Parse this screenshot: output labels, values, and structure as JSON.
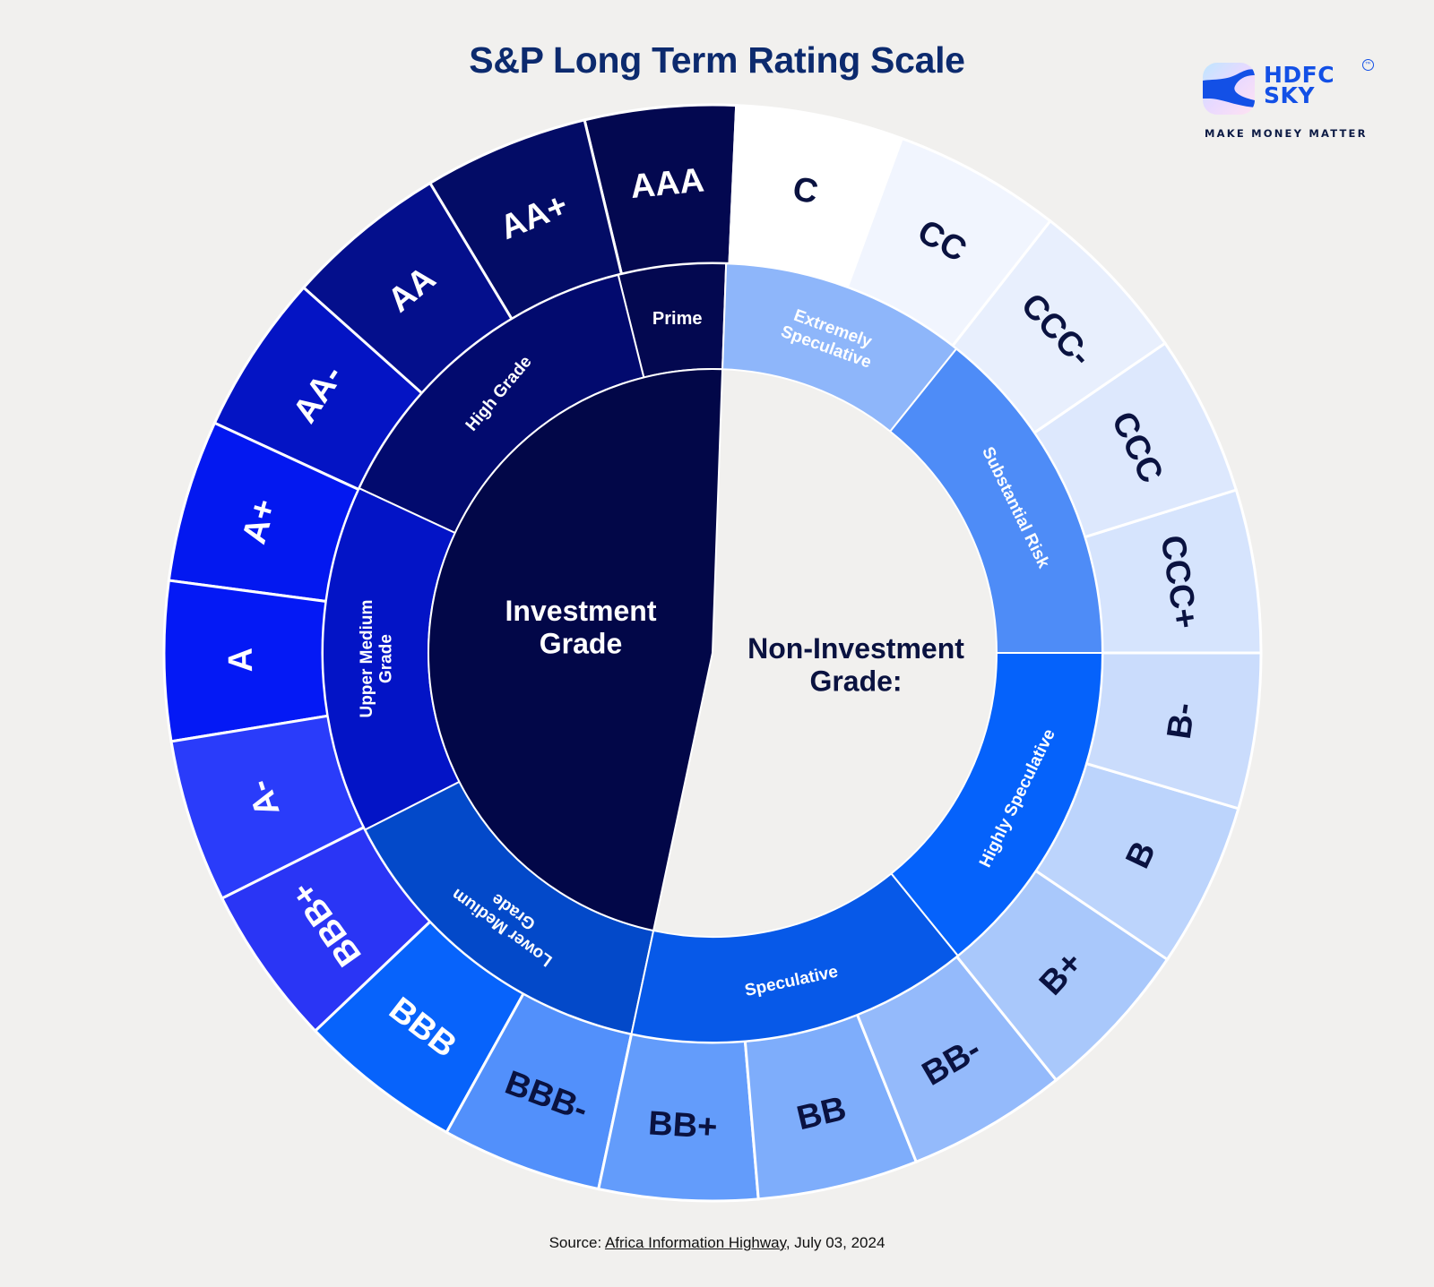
{
  "title": "S&P Long Term Rating Scale",
  "logo": {
    "brand_line1": "HDFC",
    "brand_line2": "SKY",
    "tm": "TM",
    "tagline": "MAKE MONEY MATTER",
    "accent": "#1350e6"
  },
  "source": {
    "prefix": "Source: ",
    "link_text": "Africa Information Highway",
    "suffix": ", July 03, 2024"
  },
  "chart_data": {
    "type": "sunburst",
    "title": "S&P Long Term Rating Scale",
    "levels": [
      "grade",
      "category",
      "rating"
    ],
    "center": [
      {
        "label": "Investment Grade",
        "color": "#020748",
        "text_color": "#ffffff"
      },
      {
        "label": "Non-Investment Grade:",
        "color": "#f1f0ee",
        "text_color": "#0a1240"
      }
    ],
    "categories": [
      {
        "label": "Prime",
        "grade": "Investment Grade",
        "color": "#030850",
        "ratings": [
          "AAA"
        ]
      },
      {
        "label": "High Grade",
        "grade": "Investment Grade",
        "color": "#020a6e",
        "ratings": [
          "AA+",
          "AA",
          "AA-"
        ]
      },
      {
        "label": "Upper Medium Grade",
        "grade": "Investment Grade",
        "color": "#0314c6",
        "ratings": [
          "A+",
          "A",
          "A-"
        ]
      },
      {
        "label": "Lower Medium Grade",
        "grade": "Investment Grade",
        "color": "#0349c9",
        "ratings": [
          "BBB+",
          "BBB",
          "BBB-"
        ]
      },
      {
        "label": "Speculative",
        "grade": "Non-Investment Grade",
        "color": "#0759e8",
        "ratings": [
          "BB+",
          "BB",
          "BB-"
        ]
      },
      {
        "label": "Highly Speculative",
        "grade": "Non-Investment Grade",
        "color": "#0562fb",
        "ratings": [
          "B+",
          "B",
          "B-"
        ]
      },
      {
        "label": "Substantial Risk",
        "grade": "Non-Investment Grade",
        "color": "#4e8cf7",
        "ratings": [
          "CCC+",
          "CCC",
          "CCC-"
        ]
      },
      {
        "label": "Extremely Speculative",
        "grade": "Non-Investment Grade",
        "color": "#8eb6fa",
        "ratings": [
          "CC",
          "C"
        ]
      }
    ],
    "ratings": [
      {
        "label": "AAA",
        "color": "#030850",
        "text_color": "#ffffff"
      },
      {
        "label": "AA+",
        "color": "#030c66",
        "text_color": "#ffffff"
      },
      {
        "label": "AA",
        "color": "#040f8c",
        "text_color": "#ffffff"
      },
      {
        "label": "AA-",
        "color": "#0414c4",
        "text_color": "#ffffff"
      },
      {
        "label": "A+",
        "color": "#0318f0",
        "text_color": "#ffffff"
      },
      {
        "label": "A",
        "color": "#0419f5",
        "text_color": "#ffffff"
      },
      {
        "label": "A-",
        "color": "#2a3cfa",
        "text_color": "#ffffff"
      },
      {
        "label": "BBB+",
        "color": "#2a35f5",
        "text_color": "#ffffff"
      },
      {
        "label": "BBB",
        "color": "#0763fb",
        "text_color": "#ffffff"
      },
      {
        "label": "BBB-",
        "color": "#5290fb",
        "text_color": "#0a1240"
      },
      {
        "label": "BB+",
        "color": "#639cfb",
        "text_color": "#0a1240"
      },
      {
        "label": "BB",
        "color": "#7eadfb",
        "text_color": "#0a1240"
      },
      {
        "label": "BB-",
        "color": "#94bafb",
        "text_color": "#0a1240"
      },
      {
        "label": "B+",
        "color": "#a9c8fb",
        "text_color": "#0a1240"
      },
      {
        "label": "B",
        "color": "#bcd4fc",
        "text_color": "#0a1240"
      },
      {
        "label": "B-",
        "color": "#cadcfc",
        "text_color": "#0a1240"
      },
      {
        "label": "CCC+",
        "color": "#d6e4fd",
        "text_color": "#0a1240"
      },
      {
        "label": "CCC",
        "color": "#dde8fd",
        "text_color": "#0a1240"
      },
      {
        "label": "CCC-",
        "color": "#e8effd",
        "text_color": "#0a1240"
      },
      {
        "label": "CC",
        "color": "#f1f5fe",
        "text_color": "#0a1240"
      },
      {
        "label": "C",
        "color": "#ffffff",
        "text_color": "#0a1240"
      }
    ]
  }
}
